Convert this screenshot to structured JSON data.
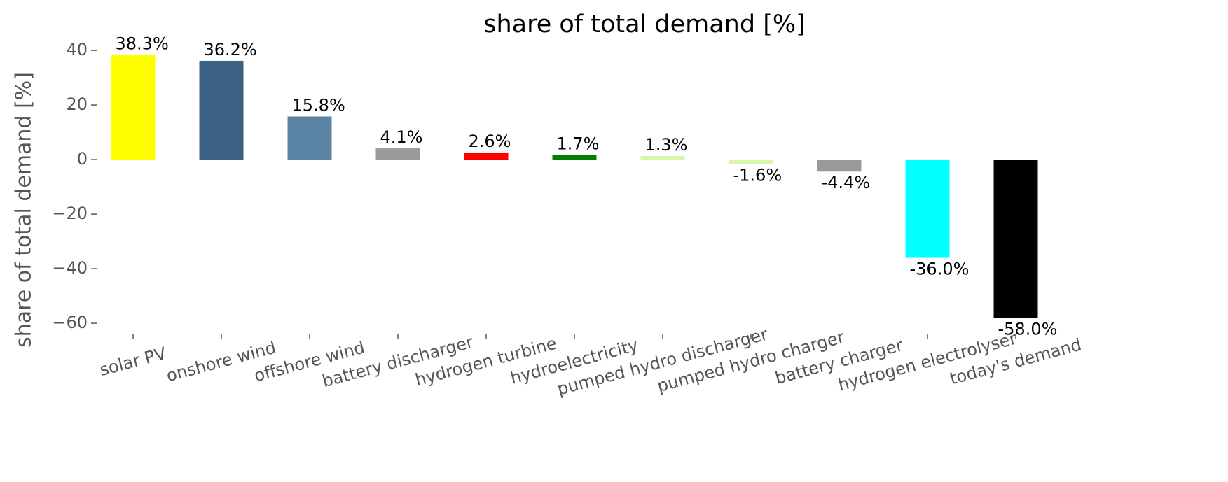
{
  "chart_data": {
    "type": "bar",
    "title": "share of total demand [%]",
    "y_label": "share of total demand [%]",
    "categories": [
      "solar PV",
      "onshore wind",
      "offshore wind",
      "battery discharger",
      "hydrogen turbine",
      "hydroelectricity",
      "pumped hydro discharger",
      "pumped hydro charger",
      "battery charger",
      "hydrogen electrolyser",
      "today's demand"
    ],
    "values": [
      38.3,
      36.2,
      15.8,
      4.1,
      2.6,
      1.7,
      1.3,
      -1.6,
      -4.4,
      -36.0,
      -58.0
    ],
    "value_labels": [
      "38.3%",
      "36.2%",
      "15.8%",
      "4.1%",
      "2.6%",
      "1.7%",
      "1.3%",
      "-1.6%",
      "-4.4%",
      "-36.0%",
      "-58.0%"
    ],
    "colors": [
      "#ffff00",
      "#3b6182",
      "#5b83a3",
      "#999999",
      "#ff0000",
      "#008000",
      "#d8f7aa",
      "#d8f7aa",
      "#999999",
      "#00ffff",
      "#000000"
    ],
    "ylim": [
      -62.8,
      43.1
    ],
    "yticks": [
      {
        "value": -60,
        "label": "−60"
      },
      {
        "value": -40,
        "label": "−40"
      },
      {
        "value": -20,
        "label": "−20"
      },
      0,
      20,
      40
    ],
    "grid": false
  }
}
